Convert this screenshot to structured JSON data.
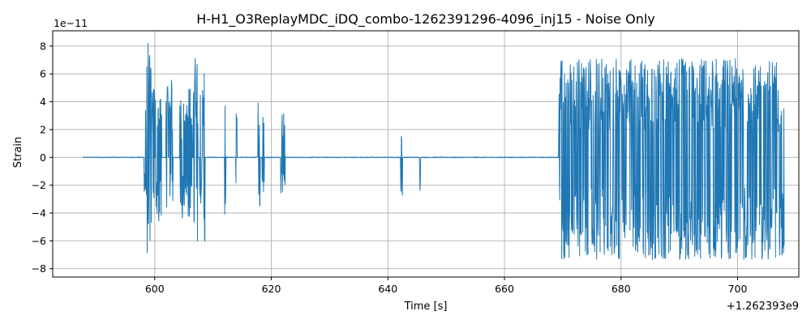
{
  "chart_data": {
    "type": "line",
    "title": "H-H1_O3ReplayMDC_iDQ_combo-1262391296-4096_inj15 - Noise Only",
    "xlabel": "Time [s]",
    "ylabel": "Strain",
    "x_offset_label": "+1.262393e9",
    "y_scale_label": "1e−11",
    "xlim": [
      582.5,
      710.5
    ],
    "ylim": [
      -8.6,
      9.1
    ],
    "x_ticks": [
      600,
      620,
      640,
      660,
      680,
      700
    ],
    "x_tick_labels": [
      "600",
      "620",
      "640",
      "660",
      "680",
      "700"
    ],
    "y_ticks": [
      -8,
      -6,
      -4,
      -2,
      0,
      2,
      4,
      6,
      8
    ],
    "y_tick_labels": [
      "−8",
      "−6",
      "−4",
      "−2",
      "0",
      "2",
      "4",
      "6",
      "8"
    ],
    "grid": true,
    "series": [
      {
        "color": "#1f77b4",
        "x_range": [
          587.7,
          708.0
        ],
        "bursts": [
          [
            598.2,
            598.6,
            4.4,
            -2.8
          ],
          [
            598.6,
            599.4,
            8.3,
            -7.3
          ],
          [
            599.4,
            600.0,
            5.5,
            -4.9
          ],
          [
            600.1,
            601.2,
            4.7,
            -5.1
          ],
          [
            601.9,
            602.3,
            5.6,
            -3.6
          ],
          [
            602.4,
            603.1,
            5.6,
            -3.4
          ],
          [
            604.3,
            604.8,
            4.5,
            -6.6
          ],
          [
            604.8,
            605.6,
            4.3,
            -3.6
          ],
          [
            605.6,
            606.4,
            5.0,
            -4.7
          ],
          [
            606.6,
            607.4,
            7.4,
            -7.0
          ],
          [
            607.7,
            608.1,
            6.1,
            -3.6
          ],
          [
            608.2,
            608.6,
            6.3,
            -7.6
          ],
          [
            612.0,
            612.2,
            4.1,
            -4.1
          ],
          [
            613.9,
            614.1,
            3.3,
            -4.2
          ],
          [
            617.7,
            618.1,
            4.5,
            -3.8
          ],
          [
            618.4,
            618.8,
            3.5,
            -3.2
          ],
          [
            621.6,
            622.4,
            3.3,
            -3.0
          ],
          [
            642.2,
            642.5,
            2.7,
            -3.3
          ],
          [
            645.4,
            645.6,
            3.2,
            -2.7
          ],
          [
            669.3,
            669.7,
            7.1,
            -3.6
          ],
          [
            669.7,
            708.0,
            7.1,
            -7.4
          ]
        ]
      }
    ]
  }
}
